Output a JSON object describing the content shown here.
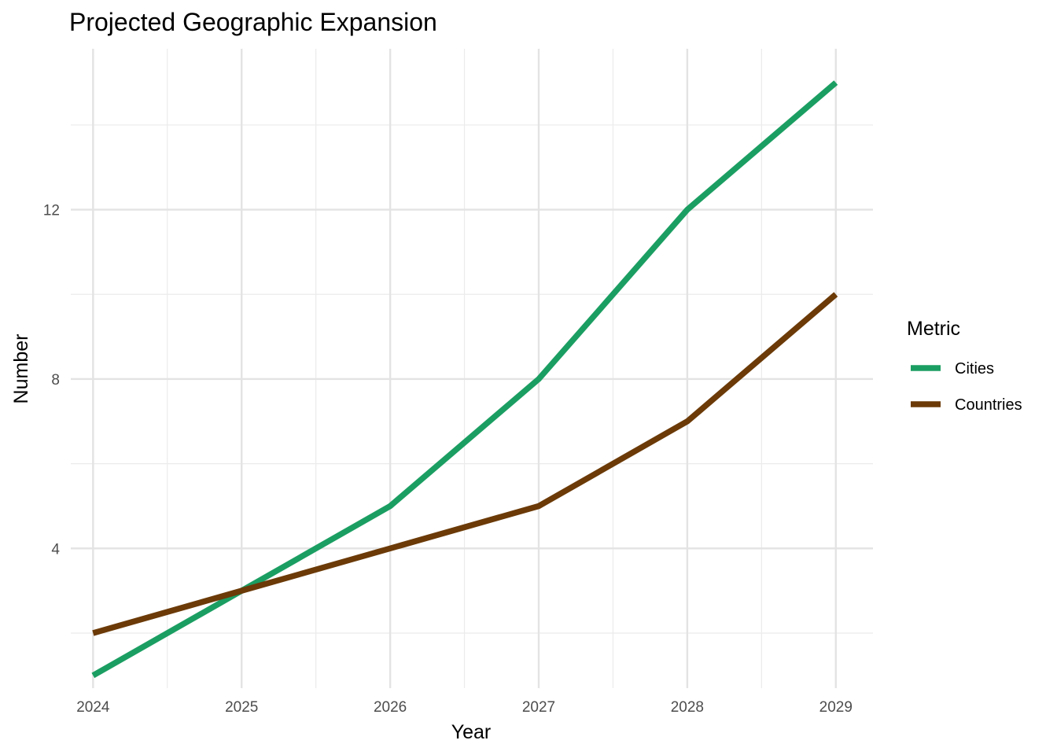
{
  "chart_data": {
    "type": "line",
    "title": "Projected Geographic Expansion",
    "xlabel": "Year",
    "ylabel": "Number",
    "x": [
      2024,
      2025,
      2026,
      2027,
      2028,
      2029
    ],
    "x_tick_labels": [
      "2024",
      "2025",
      "2026",
      "2027",
      "2028",
      "2029"
    ],
    "y_ticks": [
      4,
      8,
      12
    ],
    "y_tick_labels": [
      "4",
      "8",
      "12"
    ],
    "xlim": [
      2023.85,
      2029.25
    ],
    "ylim": [
      0.7,
      15.8
    ],
    "grid": true,
    "legend": {
      "title": "Metric",
      "position": "right"
    },
    "series": [
      {
        "name": "Cities",
        "color": "#1b9e62",
        "values": [
          1,
          3,
          5,
          8,
          12,
          15
        ]
      },
      {
        "name": "Countries",
        "color": "#6b3a07",
        "values": [
          2,
          3,
          4,
          5,
          7,
          10
        ]
      }
    ]
  }
}
